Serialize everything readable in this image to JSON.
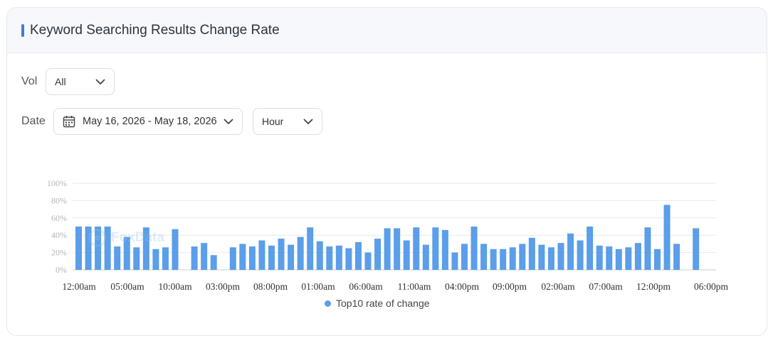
{
  "card": {
    "title": "Keyword Searching Results Change Rate"
  },
  "filters": {
    "vol_label": "Vol",
    "vol_value": "All",
    "date_label": "Date",
    "date_range": "May 16, 2026 - May 18, 2026",
    "granularity": "Hour"
  },
  "watermark": "FoxData",
  "colors": {
    "bar": "#5b9ee9",
    "accent": "#3b7ddd",
    "grid": "#e6e9ee"
  },
  "chart_data": {
    "type": "bar",
    "ylim": [
      0,
      100
    ],
    "y_ticks": [
      "0%",
      "20%",
      "40%",
      "60%",
      "80%",
      "100%"
    ],
    "x_tick_labels": [
      "12:00am",
      "05:00am",
      "10:00am",
      "03:00pm",
      "08:00pm",
      "01:00am",
      "06:00am",
      "11:00am",
      "04:00pm",
      "09:00pm",
      "02:00am",
      "07:00am",
      "12:00pm",
      "06:00pm"
    ],
    "series": [
      {
        "name": "Top10 rate of change",
        "values": [
          50,
          50,
          50,
          50,
          27,
          38,
          26,
          49,
          24,
          26,
          47,
          null,
          27,
          31,
          17,
          null,
          26,
          30,
          27,
          34,
          28,
          36,
          29,
          38,
          49,
          33,
          27,
          28,
          25,
          32,
          20,
          36,
          48,
          48,
          34,
          49,
          29,
          49,
          46,
          20,
          30,
          50,
          30,
          24,
          24,
          26,
          30,
          37,
          29,
          26,
          31,
          42,
          34,
          50,
          28,
          27,
          24,
          26,
          31,
          49,
          24,
          75,
          30,
          null,
          48
        ]
      }
    ],
    "legend": [
      "Top10 rate of change"
    ],
    "legend_position": "bottom",
    "grid": true
  }
}
